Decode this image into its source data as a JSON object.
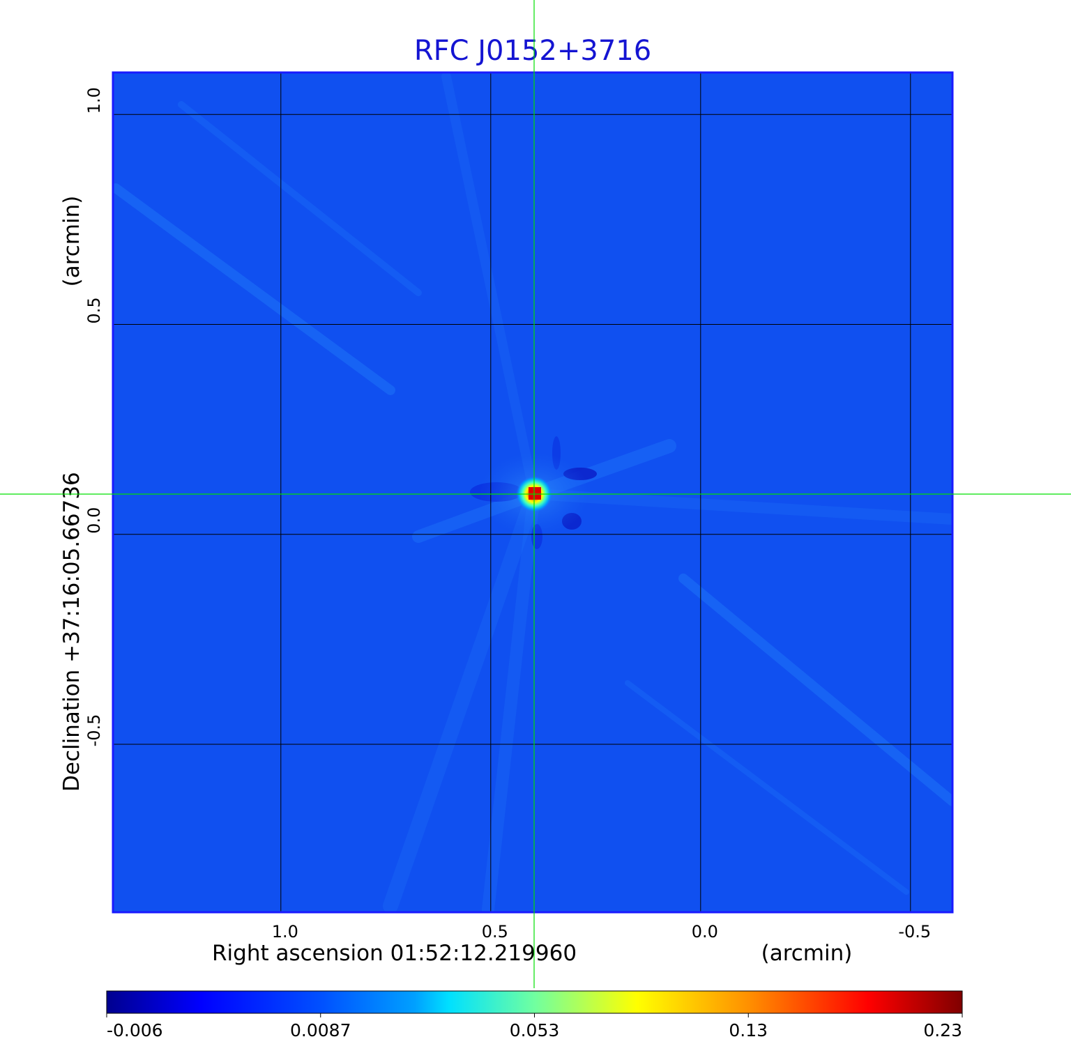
{
  "chart_data": {
    "type": "heatmap",
    "title": "RFC J0152+3716",
    "x_axis": {
      "label": "Right ascension  01:52:12.219960",
      "unit_label": "(arcmin)",
      "ticks": [
        {
          "value": 1.0,
          "label": "1.0"
        },
        {
          "value": 0.5,
          "label": "0.5"
        },
        {
          "value": 0.0,
          "label": "0.0"
        },
        {
          "value": -0.5,
          "label": "-0.5"
        }
      ],
      "range": [
        1.4,
        -0.6
      ],
      "direction": "decreasing to the right"
    },
    "y_axis": {
      "label": "Declination  +37:16:05.66736",
      "unit_label": "(arcmin)",
      "ticks": [
        {
          "value": 1.0,
          "label": "1.0"
        },
        {
          "value": 0.5,
          "label": "0.5"
        },
        {
          "value": 0.0,
          "label": "0.0"
        },
        {
          "value": -0.5,
          "label": "-0.5"
        }
      ],
      "range": [
        -0.9,
        1.1
      ]
    },
    "grid": true,
    "crosshair": {
      "x": 0.39,
      "y": 0.097,
      "color": "#00e000"
    },
    "source_peak": {
      "x": 0.39,
      "y": 0.097,
      "value": 0.23
    },
    "colormap": "jet",
    "colorbar": {
      "position": "bottom",
      "range": [
        -0.006,
        0.23
      ],
      "ticks": [
        {
          "value": -0.006,
          "label": "-0.006"
        },
        {
          "value": 0.0087,
          "label": "0.0087"
        },
        {
          "value": 0.053,
          "label": "0.053"
        },
        {
          "value": 0.13,
          "label": "0.13"
        },
        {
          "value": 0.23,
          "label": "0.23"
        }
      ]
    },
    "colors": {
      "background_field": "#1050f0",
      "frame": "#1a1aff",
      "title": "#1414d2",
      "grid": "#000000",
      "crosshair": "#00e000"
    }
  }
}
